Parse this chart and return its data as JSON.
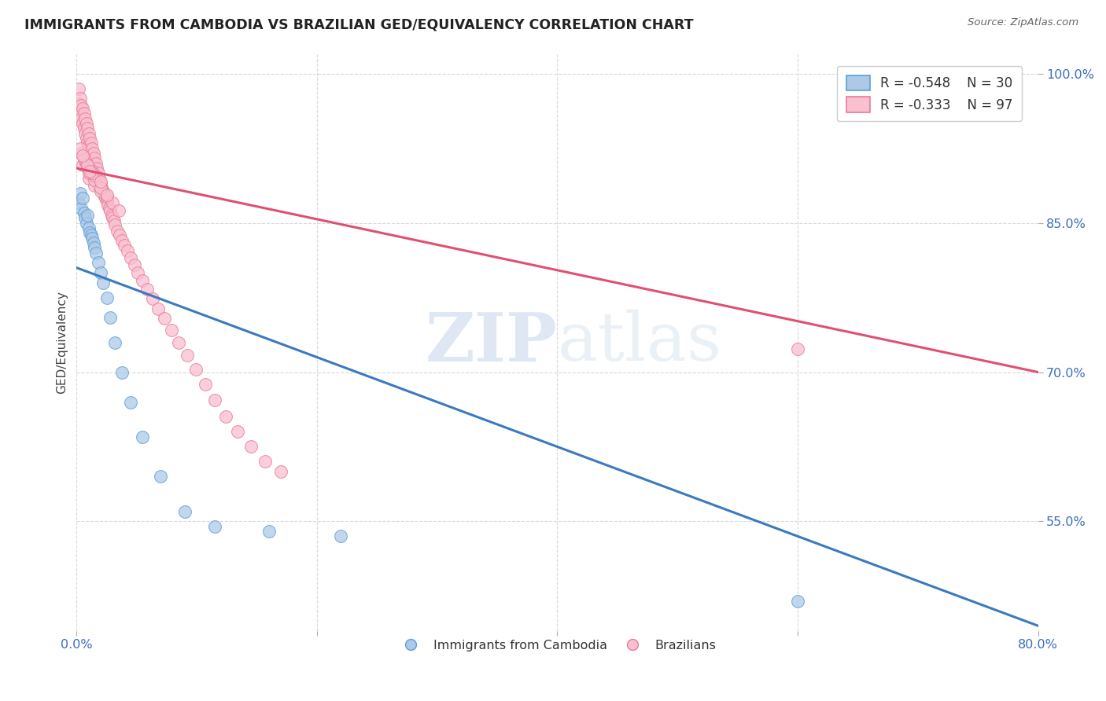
{
  "title": "IMMIGRANTS FROM CAMBODIA VS BRAZILIAN GED/EQUIVALENCY CORRELATION CHART",
  "source": "Source: ZipAtlas.com",
  "ylabel_label": "GED/Equivalency",
  "xmin": 0.0,
  "xmax": 0.8,
  "ymin": 0.44,
  "ymax": 1.02,
  "yticks": [
    0.55,
    0.7,
    0.85,
    1.0
  ],
  "ytick_labels": [
    "55.0%",
    "70.0%",
    "85.0%",
    "100.0%"
  ],
  "xticks": [
    0.0,
    0.2,
    0.4,
    0.6,
    0.8
  ],
  "xtick_labels": [
    "0.0%",
    "",
    "",
    "",
    "80.0%"
  ],
  "background_color": "#ffffff",
  "grid_color": "#d8d8d8",
  "blue_fill": "#aec9e8",
  "pink_fill": "#f9c0d0",
  "blue_edge": "#5a9fd4",
  "pink_edge": "#e8799a",
  "blue_line": "#3a7abf",
  "pink_line": "#e05070",
  "legend_R1": "R = -0.548",
  "legend_N1": "N = 30",
  "legend_R2": "R = -0.333",
  "legend_N2": "N = 97",
  "watermark_zip": "ZIP",
  "watermark_atlas": "atlas",
  "cam_trend_x0": 0.0,
  "cam_trend_y0": 0.805,
  "cam_trend_x1": 0.8,
  "cam_trend_y1": 0.445,
  "bra_trend_x0": 0.0,
  "bra_trend_y0": 0.905,
  "bra_trend_x1": 0.8,
  "bra_trend_y1": 0.7,
  "cambodia_x": [
    0.002,
    0.003,
    0.004,
    0.005,
    0.006,
    0.007,
    0.008,
    0.009,
    0.01,
    0.011,
    0.012,
    0.013,
    0.014,
    0.015,
    0.016,
    0.018,
    0.02,
    0.022,
    0.025,
    0.028,
    0.032,
    0.038,
    0.045,
    0.055,
    0.07,
    0.09,
    0.115,
    0.16,
    0.22,
    0.6
  ],
  "cambodia_y": [
    0.87,
    0.88,
    0.865,
    0.875,
    0.86,
    0.855,
    0.85,
    0.858,
    0.845,
    0.84,
    0.838,
    0.835,
    0.83,
    0.825,
    0.82,
    0.81,
    0.8,
    0.79,
    0.775,
    0.755,
    0.73,
    0.7,
    0.67,
    0.635,
    0.595,
    0.56,
    0.545,
    0.54,
    0.535,
    0.47
  ],
  "brazilian_x": [
    0.002,
    0.002,
    0.003,
    0.003,
    0.004,
    0.004,
    0.005,
    0.005,
    0.006,
    0.006,
    0.007,
    0.007,
    0.008,
    0.008,
    0.009,
    0.009,
    0.01,
    0.01,
    0.011,
    0.011,
    0.012,
    0.012,
    0.013,
    0.013,
    0.014,
    0.014,
    0.015,
    0.015,
    0.016,
    0.016,
    0.017,
    0.017,
    0.018,
    0.018,
    0.019,
    0.02,
    0.021,
    0.022,
    0.023,
    0.024,
    0.025,
    0.026,
    0.027,
    0.028,
    0.029,
    0.03,
    0.031,
    0.032,
    0.034,
    0.036,
    0.038,
    0.04,
    0.042,
    0.045,
    0.048,
    0.051,
    0.055,
    0.059,
    0.063,
    0.068,
    0.073,
    0.079,
    0.085,
    0.092,
    0.099,
    0.107,
    0.115,
    0.124,
    0.134,
    0.145,
    0.157,
    0.17,
    0.01,
    0.015,
    0.02,
    0.025,
    0.03,
    0.035,
    0.005,
    0.01,
    0.015,
    0.02,
    0.025,
    0.01,
    0.015,
    0.02,
    0.007,
    0.012,
    0.008,
    0.013,
    0.004,
    0.006,
    0.009,
    0.011,
    0.003,
    0.005,
    0.6
  ],
  "brazilian_y": [
    0.985,
    0.97,
    0.975,
    0.96,
    0.968,
    0.955,
    0.965,
    0.95,
    0.96,
    0.945,
    0.955,
    0.94,
    0.95,
    0.935,
    0.945,
    0.93,
    0.94,
    0.928,
    0.935,
    0.922,
    0.93,
    0.918,
    0.925,
    0.912,
    0.92,
    0.908,
    0.915,
    0.902,
    0.91,
    0.898,
    0.905,
    0.893,
    0.9,
    0.888,
    0.895,
    0.89,
    0.885,
    0.882,
    0.878,
    0.875,
    0.872,
    0.868,
    0.865,
    0.862,
    0.858,
    0.855,
    0.852,
    0.848,
    0.842,
    0.838,
    0.832,
    0.828,
    0.822,
    0.815,
    0.808,
    0.8,
    0.792,
    0.783,
    0.774,
    0.764,
    0.754,
    0.742,
    0.73,
    0.717,
    0.703,
    0.688,
    0.672,
    0.655,
    0.64,
    0.625,
    0.61,
    0.6,
    0.895,
    0.888,
    0.882,
    0.877,
    0.87,
    0.862,
    0.908,
    0.9,
    0.893,
    0.885,
    0.878,
    0.905,
    0.898,
    0.892,
    0.912,
    0.903,
    0.91,
    0.9,
    0.92,
    0.915,
    0.908,
    0.902,
    0.925,
    0.918,
    0.723
  ]
}
